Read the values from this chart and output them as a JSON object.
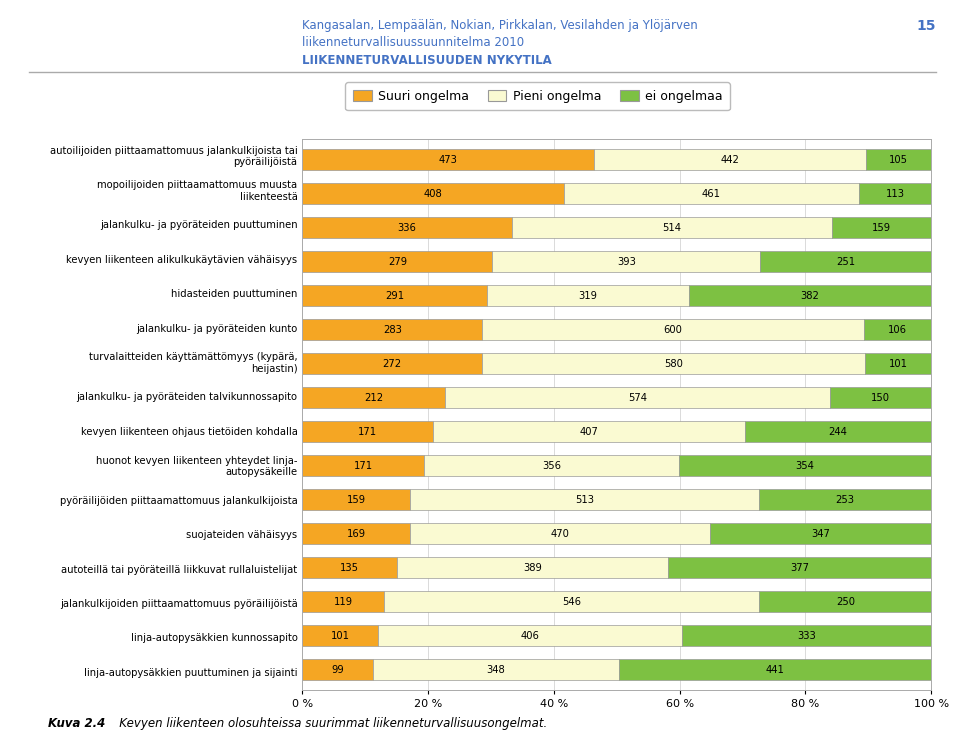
{
  "title_line1": "Kangasalan, Lempäälän, Nokian, Pirkkalan, Vesilahden ja Ylöjärven",
  "title_line2": "liikenneturvallisuussuunnitelma 2010",
  "title_line3": "LIIKENNETURVALLISUUDEN NYKYTILA",
  "page_number": "15",
  "categories": [
    "autoilijoiden piittaamattomuus jalankulkijoista tai\npyöräilijöistä",
    "mopoilijoiden piittaamattomuus muusta\nliikenteestä",
    "jalankulku- ja pyöräteiden puuttuminen",
    "kevyen liikenteen alikulkukäytävien vähäisyys",
    "hidasteiden puuttuminen",
    "jalankulku- ja pyöräteiden kunto",
    "turvalaitteiden käyttämättömyys (kypärä,\nheijastin)",
    "jalankulku- ja pyöräteiden talvikunnossapito",
    "kevyen liikenteen ohjaus tietöiden kohdalla",
    "huonot kevyen liikenteen yhteydet linja-\nautopysäkeille",
    "pyöräilijöiden piittaamattomuus jalankulkijoista",
    "suojateiden vähäisyys",
    "autoteillä tai pyöräteillä liikkuvat rullaluistelijat",
    "jalankulkijoiden piittaamattomuus pyöräilijöistä",
    "linja-autopysäkkien kunnossapito",
    "linja-autopysäkkien puuttuminen ja sijainti"
  ],
  "suuri": [
    473,
    408,
    336,
    279,
    291,
    283,
    272,
    212,
    171,
    171,
    159,
    169,
    135,
    119,
    101,
    99
  ],
  "pieni": [
    442,
    461,
    514,
    393,
    319,
    600,
    580,
    574,
    407,
    356,
    513,
    470,
    389,
    546,
    406,
    348
  ],
  "ei": [
    105,
    113,
    159,
    251,
    382,
    106,
    101,
    150,
    244,
    354,
    253,
    347,
    377,
    250,
    333,
    441
  ],
  "color_suuri": "#F5A623",
  "color_pieni": "#FAFAD2",
  "color_ei": "#7DC142",
  "legend_labels": [
    "Suuri ongelma",
    "Pieni ongelma",
    "ei ongelmaa"
  ],
  "caption_bold": "Kuva 2.4",
  "caption_text": "   Kevyen liikenteen olosuhteissa suurimmat liikenneturvallisuusongelmat."
}
